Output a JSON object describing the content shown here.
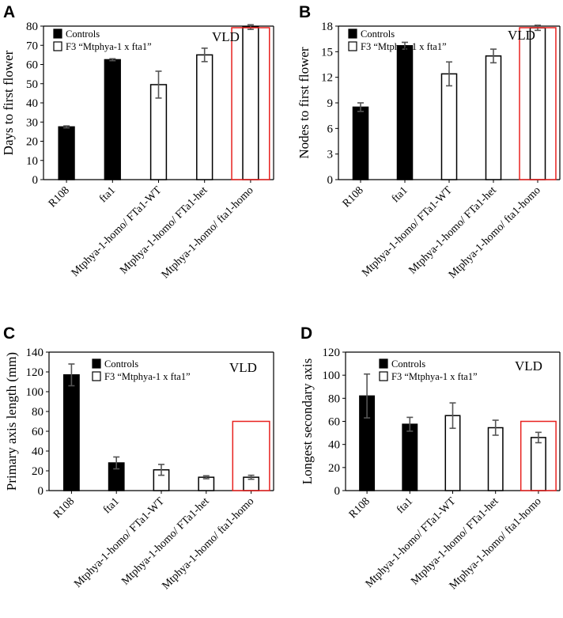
{
  "chart_data": [
    {
      "panel": "A",
      "type": "bar",
      "ylabel": "Days to first flower",
      "ylim": [
        0,
        80
      ],
      "yticks": [
        0,
        10,
        20,
        30,
        40,
        50,
        60,
        70,
        80
      ],
      "condition": "VLD",
      "categories": [
        "R108",
        "fta1",
        "Mtphya-1-homo/ FTa1-WT",
        "Mtphya-1-homo/ FTa1-het",
        "Mtphya-1-homo/ fta1-homo"
      ],
      "values": [
        27.5,
        62.5,
        49.5,
        65,
        79.5
      ],
      "errors": [
        0.5,
        0.5,
        7,
        3.5,
        1.2
      ],
      "groups": [
        "Controls",
        "Controls",
        "F3",
        "F3",
        "F3"
      ],
      "legend": [
        "Controls",
        "F3 “Mtphya-1 x fta1”"
      ],
      "highlighted": "Mtphya-1-homo/ fta1-homo"
    },
    {
      "panel": "B",
      "type": "bar",
      "ylabel": "Nodes to first flower",
      "ylim": [
        0,
        18
      ],
      "yticks": [
        0,
        3,
        6,
        9,
        12,
        15,
        18
      ],
      "condition": "VLD",
      "categories": [
        "R108",
        "fta1",
        "Mtphya-1-homo/ FTa1-WT",
        "Mtphya-1-homo/ FTa1-het",
        "Mtphya-1-homo/ fta1-homo"
      ],
      "values": [
        8.5,
        15.7,
        12.4,
        14.5,
        17.8
      ],
      "errors": [
        0.5,
        0.4,
        1.4,
        0.8,
        0.3
      ],
      "groups": [
        "Controls",
        "Controls",
        "F3",
        "F3",
        "F3"
      ],
      "legend": [
        "Controls",
        "F3 “Mtphya-1 x fta1”"
      ],
      "highlighted": "Mtphya-1-homo/ fta1-homo"
    },
    {
      "panel": "C",
      "type": "bar",
      "ylabel": "Primary axis length (mm)",
      "ylim": [
        0,
        140
      ],
      "yticks": [
        0,
        20,
        40,
        60,
        80,
        100,
        120,
        140
      ],
      "condition": "VLD",
      "categories": [
        "R108",
        "fta1",
        "Mtphya-1-homo/ FTa1-WT",
        "Mtphya-1-homo/ FTa1-het",
        "Mtphya-1-homo/ fta1-homo"
      ],
      "values": [
        117,
        28,
        21,
        13.5,
        13.5
      ],
      "errors": [
        11,
        6,
        5.5,
        1.5,
        2
      ],
      "groups": [
        "Controls",
        "Controls",
        "F3",
        "F3",
        "F3"
      ],
      "legend": [
        "Controls",
        "F3 “Mtphya-1 x fta1”"
      ],
      "highlighted": "Mtphya-1-homo/ fta1-homo"
    },
    {
      "panel": "D",
      "type": "bar",
      "ylabel": "Longest secondary axis",
      "ylim": [
        0,
        120
      ],
      "yticks": [
        0,
        20,
        40,
        60,
        80,
        100,
        120
      ],
      "condition": "VLD",
      "categories": [
        "R108",
        "fta1",
        "Mtphya-1-homo/ FTa1-WT",
        "Mtphya-1-homo/ FTa1-het",
        "Mtphya-1-homo/ fta1-homo"
      ],
      "values": [
        82,
        57.5,
        65,
        54.5,
        46
      ],
      "errors": [
        19,
        6,
        11,
        6.5,
        4.5
      ],
      "groups": [
        "Controls",
        "Controls",
        "F3",
        "F3",
        "F3"
      ],
      "legend": [
        "Controls",
        "F3 “Mtphya-1 x fta1”"
      ],
      "highlighted": "Mtphya-1-homo/ fta1-homo"
    }
  ],
  "colors": {
    "controls_fill": "#000000",
    "f3_fill": "#ffffff",
    "bar_stroke": "#000000",
    "error_bar": "#555555",
    "highlight_box": "#e8211f",
    "axis": "#000000"
  }
}
